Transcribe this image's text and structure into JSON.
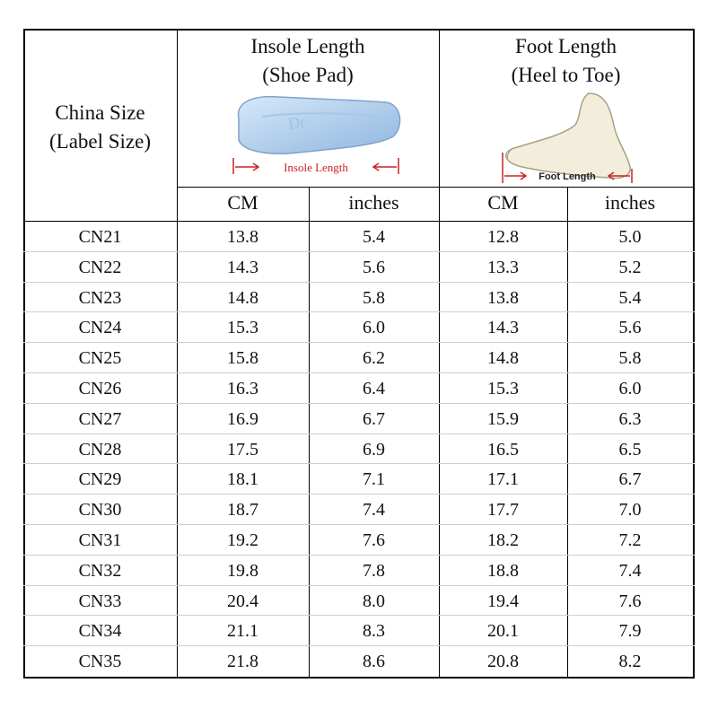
{
  "header": {
    "china_size": [
      "China Size",
      "(Label Size)"
    ],
    "insole": [
      "Insole Length",
      "(Shoe Pad)"
    ],
    "insole_caption": "Insole Length",
    "insole_pad_letters": "Dr",
    "foot": [
      "Foot Length",
      "(Heel to Toe)"
    ],
    "foot_caption": "Foot Length",
    "units": [
      "CM",
      "inches",
      "CM",
      "inches"
    ]
  },
  "rows": [
    [
      "CN21",
      "13.8",
      "5.4",
      "12.8",
      "5.0"
    ],
    [
      "CN22",
      "14.3",
      "5.6",
      "13.3",
      "5.2"
    ],
    [
      "CN23",
      "14.8",
      "5.8",
      "13.8",
      "5.4"
    ],
    [
      "CN24",
      "15.3",
      "6.0",
      "14.3",
      "5.6"
    ],
    [
      "CN25",
      "15.8",
      "6.2",
      "14.8",
      "5.8"
    ],
    [
      "CN26",
      "16.3",
      "6.4",
      "15.3",
      "6.0"
    ],
    [
      "CN27",
      "16.9",
      "6.7",
      "15.9",
      "6.3"
    ],
    [
      "CN28",
      "17.5",
      "6.9",
      "16.5",
      "6.5"
    ],
    [
      "CN29",
      "18.1",
      "7.1",
      "17.1",
      "6.7"
    ],
    [
      "CN30",
      "18.7",
      "7.4",
      "17.7",
      "7.0"
    ],
    [
      "CN31",
      "19.2",
      "7.6",
      "18.2",
      "7.2"
    ],
    [
      "CN32",
      "19.8",
      "7.8",
      "18.8",
      "7.4"
    ],
    [
      "CN33",
      "20.4",
      "8.0",
      "19.4",
      "7.6"
    ],
    [
      "CN34",
      "21.1",
      "8.3",
      "20.1",
      "7.9"
    ],
    [
      "CN35",
      "21.8",
      "8.6",
      "20.8",
      "8.2"
    ]
  ],
  "colors": {
    "border": "#000000",
    "row_divider": "#cfcfcf",
    "caption": "#cc2222",
    "insole_fill": "#b8d4ef",
    "foot_fill": "#f3eedb"
  }
}
